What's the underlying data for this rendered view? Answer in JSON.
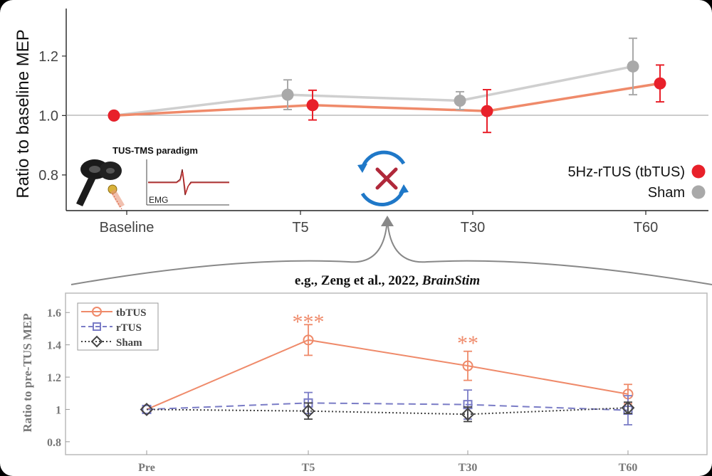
{
  "top_chart_data": {
    "type": "line",
    "ylabel": "Ratio to baseline MEP",
    "categories": [
      "Baseline",
      "T5",
      "T30",
      "T60"
    ],
    "y_ticks": [
      "0.8",
      "1.0",
      "1.2"
    ],
    "ylim": [
      0.68,
      1.36
    ],
    "series": [
      {
        "name": "Sham",
        "color": "#a9a9a9",
        "line_color": "#cfcfcf",
        "values": [
          1.0,
          1.07,
          1.05,
          1.165
        ],
        "errors": [
          0.0,
          0.05,
          0.03,
          0.095
        ]
      },
      {
        "name": "5Hz-rTUS (tbTUS)",
        "color": "#e8202a",
        "line_color": "#ef8a6a",
        "values": [
          1.0,
          1.035,
          1.015,
          1.108
        ],
        "errors": [
          0.0,
          0.05,
          0.072,
          0.062
        ]
      }
    ],
    "legend_position": "bottom-right",
    "inset_title": "TUS-TMS paradigm",
    "inset_label": "EMG"
  },
  "citation": {
    "prefix": "e.g., Zeng et al., 2022, ",
    "journal": "BrainStim"
  },
  "bottom_chart_data": {
    "type": "line",
    "ylabel": "Ratio to pre-TUS MEP",
    "categories": [
      "Pre",
      "T5",
      "T30",
      "T60"
    ],
    "y_ticks": [
      "0.8",
      "1",
      "1.2",
      "1.4",
      "1.6"
    ],
    "ylim": [
      0.72,
      1.72
    ],
    "series": [
      {
        "name": "tbTUS",
        "color": "#ef8a6a",
        "marker": "circle",
        "dash": "solid",
        "values": [
          1.0,
          1.43,
          1.27,
          1.095
        ],
        "errors": [
          0.0,
          0.095,
          0.09,
          0.06
        ]
      },
      {
        "name": "rTUS",
        "color": "#7a7cc6",
        "marker": "square",
        "dash": "dashed",
        "values": [
          1.0,
          1.04,
          1.03,
          0.995
        ],
        "errors": [
          0.0,
          0.065,
          0.09,
          0.09
        ]
      },
      {
        "name": "Sham",
        "color": "#444444",
        "marker": "diamond",
        "dash": "dotted",
        "values": [
          1.0,
          0.99,
          0.97,
          1.01
        ],
        "errors": [
          0.0,
          0.05,
          0.045,
          0.035
        ]
      }
    ],
    "annotations": [
      {
        "category": "T5",
        "text": "***"
      },
      {
        "category": "T30",
        "text": "**"
      }
    ],
    "legend_position": "top-left"
  },
  "colors": {
    "cycle_arrows": "#1f78c8",
    "cross": "#b0283a",
    "divider": "#888888"
  },
  "icons": {
    "transducer": "tms-coil-icon",
    "cycle": "refresh-cross-icon"
  }
}
